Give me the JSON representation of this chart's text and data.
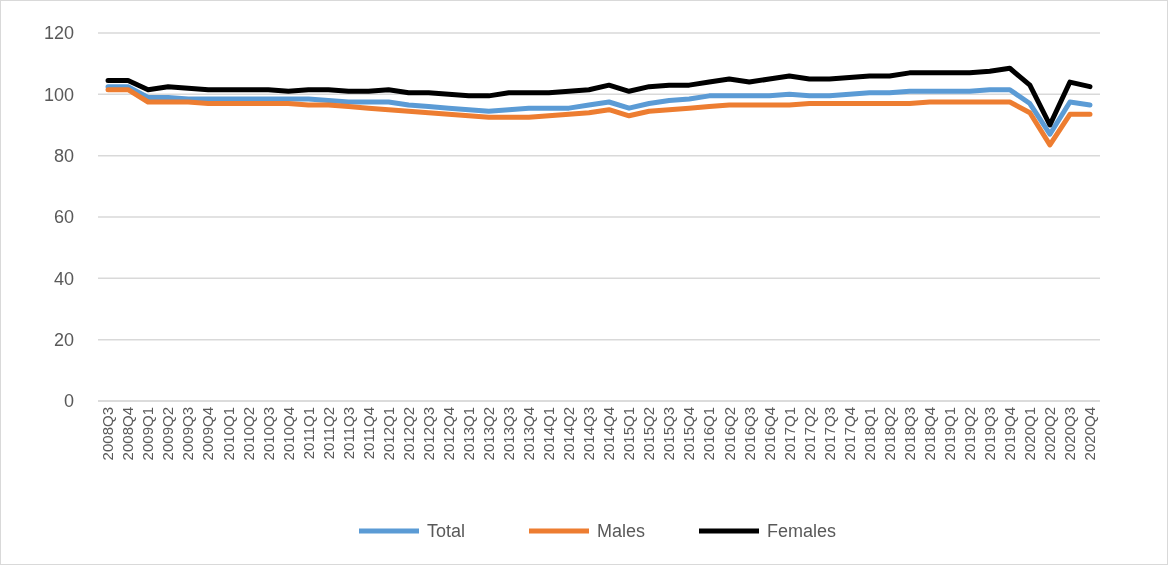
{
  "chart_data": {
    "type": "line",
    "categories": [
      "2008Q3",
      "2008Q4",
      "2009Q1",
      "2009Q2",
      "2009Q3",
      "2009Q4",
      "2010Q1",
      "2010Q2",
      "2010Q3",
      "2010Q4",
      "2011Q1",
      "2011Q2",
      "2011Q3",
      "2011Q4",
      "2012Q1",
      "2012Q2",
      "2012Q3",
      "2012Q4",
      "2013Q1",
      "2013Q2",
      "2013Q3",
      "2013Q4",
      "2014Q1",
      "2014Q2",
      "2014Q3",
      "2014Q4",
      "2015Q1",
      "2015Q2",
      "2015Q3",
      "2015Q4",
      "2016Q1",
      "2016Q2",
      "2016Q3",
      "2016Q4",
      "2017Q1",
      "2017Q2",
      "2017Q3",
      "2017Q4",
      "2018Q1",
      "2018Q2",
      "2018Q3",
      "2018Q4",
      "2019Q1",
      "2019Q2",
      "2019Q3",
      "2019Q4",
      "2020Q1",
      "2020Q2",
      "2020Q3",
      "2020Q4"
    ],
    "series": [
      {
        "name": "Total",
        "color": "#5b9bd5",
        "values": [
          102.5,
          102.5,
          99,
          99,
          98.5,
          98.5,
          98.5,
          98.5,
          98.5,
          98.5,
          98.5,
          98,
          97.5,
          97.5,
          97.5,
          96.5,
          96,
          95.5,
          95,
          94.5,
          95,
          95.5,
          95.5,
          95.5,
          96.5,
          97.5,
          95.5,
          97,
          98,
          98.5,
          99.5,
          99.5,
          99.5,
          99.5,
          100,
          99.5,
          99.5,
          100,
          100.5,
          100.5,
          101,
          101,
          101,
          101,
          101.5,
          101.5,
          97,
          87,
          97.5,
          96.5
        ]
      },
      {
        "name": "Males",
        "color": "#ed7d31",
        "values": [
          101.5,
          101.5,
          97.5,
          97.5,
          97.5,
          97,
          97,
          97,
          97,
          97,
          96.5,
          96.5,
          96,
          95.5,
          95,
          94.5,
          94,
          93.5,
          93,
          92.5,
          92.5,
          92.5,
          93,
          93.5,
          94,
          95,
          93,
          94.5,
          95,
          95.5,
          96,
          96.5,
          96.5,
          96.5,
          96.5,
          97,
          97,
          97,
          97,
          97,
          97,
          97.5,
          97.5,
          97.5,
          97.5,
          97.5,
          94,
          83.5,
          93.5,
          93.5
        ]
      },
      {
        "name": "Females",
        "color": "#000000",
        "values": [
          104.5,
          104.5,
          101.5,
          102.5,
          102,
          101.5,
          101.5,
          101.5,
          101.5,
          101,
          101.5,
          101.5,
          101,
          101,
          101.5,
          100.5,
          100.5,
          100,
          99.5,
          99.5,
          100.5,
          100.5,
          100.5,
          101,
          101.5,
          103,
          101,
          102.5,
          103,
          103,
          104,
          105,
          104,
          105,
          106,
          105,
          105,
          105.5,
          106,
          106,
          107,
          107,
          107,
          107,
          107.5,
          108.5,
          103,
          90,
          104,
          102.5
        ]
      }
    ],
    "ylim": [
      0,
      120
    ],
    "yticks": [
      0,
      20,
      40,
      60,
      80,
      100,
      120
    ],
    "grid": "y",
    "legend": "bottom",
    "marker": "none",
    "line_style": "solid"
  }
}
